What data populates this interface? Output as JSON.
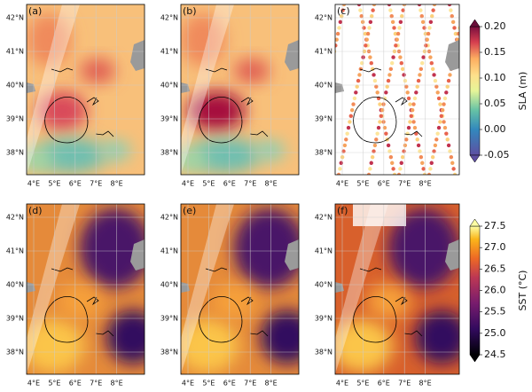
{
  "panels": [
    {
      "label": "(a)"
    },
    {
      "label": "(b)"
    },
    {
      "label": "(c)"
    },
    {
      "label": "(d)"
    },
    {
      "label": "(e)"
    },
    {
      "label": "(f)"
    }
  ],
  "lat_ticks": [
    {
      "value": 38,
      "label": "38°N"
    },
    {
      "value": 39,
      "label": "39°N"
    },
    {
      "value": 40,
      "label": "40°N"
    },
    {
      "value": 41,
      "label": "41°N"
    },
    {
      "value": 42,
      "label": "42°N"
    }
  ],
  "lon_ticks": [
    {
      "value": 4,
      "label": "4°E"
    },
    {
      "value": 5,
      "label": "5°E"
    },
    {
      "value": 6,
      "label": "6°E"
    },
    {
      "value": 7,
      "label": "7°E"
    },
    {
      "value": 8,
      "label": "8°E"
    }
  ],
  "colorbars": [
    {
      "label": "SLA (m)",
      "lim": [
        -0.05,
        0.2
      ],
      "ticks": [
        {
          "value": 0.2,
          "label": "0.20"
        },
        0.15,
        {
          "value": 0.1,
          "label": "0.10"
        },
        0.05,
        {
          "value": 0,
          "label": "0.00"
        },
        -0.05
      ]
    },
    {
      "label": "SST (°C)",
      "lim": [
        24.5,
        27.5
      ],
      "ticks": [
        27.5,
        {
          "value": 27,
          "label": "27.0"
        },
        26.5,
        {
          "value": 26,
          "label": "26.0"
        },
        25.5,
        {
          "value": 25,
          "label": "25.0"
        },
        24.5
      ]
    }
  ]
}
